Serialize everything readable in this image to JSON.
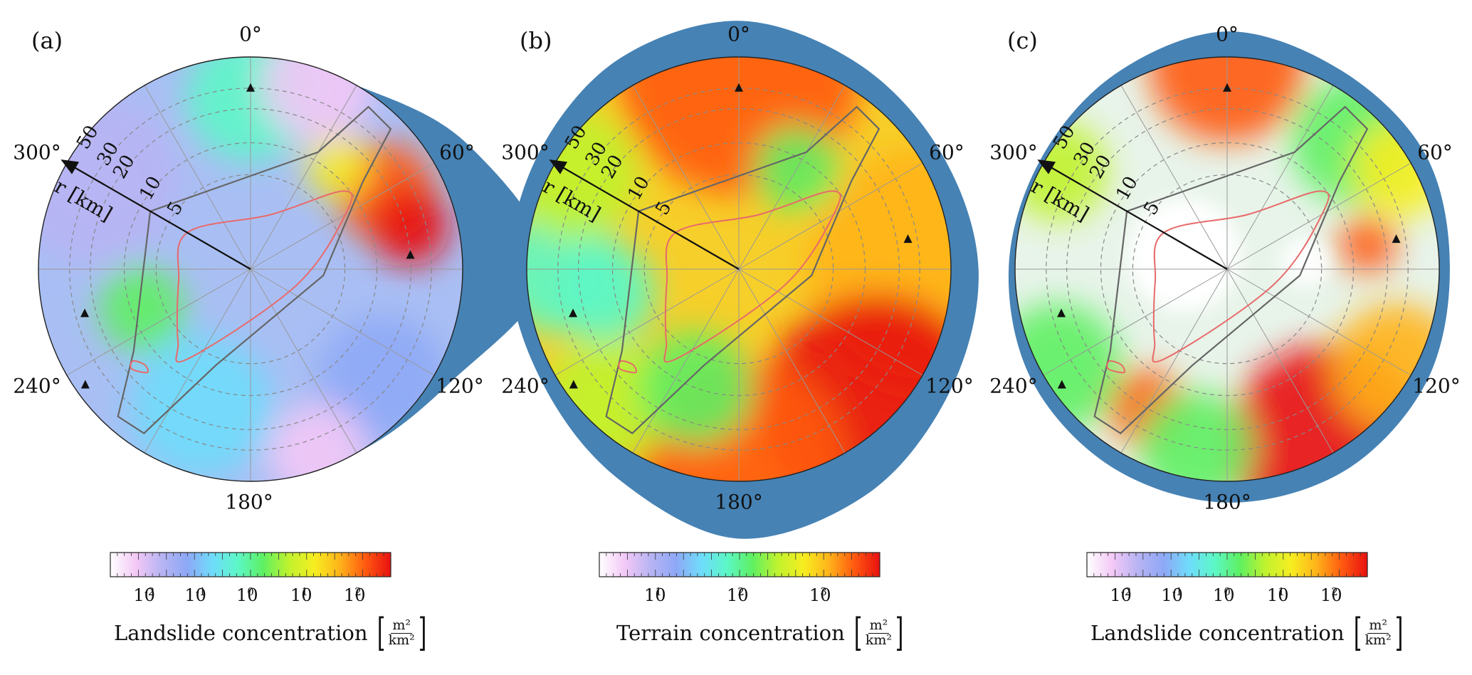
{
  "panels": [
    {
      "label": "(a)",
      "angle_labels": {
        "a0": "0°",
        "a60": "60°",
        "a120": "120°",
        "a180": "180°",
        "a240": "240°",
        "a300": "300°"
      },
      "radial_ticks": [
        "5",
        "10",
        "20",
        "30",
        "50"
      ],
      "radius_axis_label": "r [km]",
      "colorbar_ticks": [
        "10",
        "10",
        "10",
        "10",
        "10"
      ],
      "colorbar_exponents": [
        "-2",
        "-1",
        "0",
        "1",
        "2"
      ],
      "colorbar_label": "Landslide concentration",
      "unit_num": "m²",
      "unit_den": "km²"
    },
    {
      "label": "(b)",
      "angle_labels": {
        "a0": "0°",
        "a60": "60°",
        "a120": "120°",
        "a180": "180°",
        "a240": "240°",
        "a300": "300°"
      },
      "radial_ticks": [
        "5",
        "10",
        "20",
        "30",
        "50"
      ],
      "radius_axis_label": "r [km]",
      "colorbar_ticks": [
        "10",
        "10",
        "10"
      ],
      "colorbar_exponents": [
        "1",
        "2",
        "3"
      ],
      "colorbar_label": "Terrain concentration",
      "unit_num": "m²",
      "unit_den": "km²"
    },
    {
      "label": "(c)",
      "angle_labels": {
        "a0": "0°",
        "a60": "60°",
        "a120": "120°",
        "a180": "180°",
        "a240": "240°",
        "a300": "300°"
      },
      "radial_ticks": [
        "5",
        "10",
        "20",
        "30",
        "50"
      ],
      "radius_axis_label": "r [km]",
      "colorbar_ticks": [
        "10",
        "10",
        "10",
        "10",
        "10"
      ],
      "colorbar_exponents": [
        "-2",
        "-1",
        "0",
        "1",
        "2"
      ],
      "colorbar_label": "Landslide concentration",
      "unit_num": "m²",
      "unit_den": "km²"
    }
  ],
  "colors": {
    "blob": "#4682b4",
    "colormap": [
      "#ffffff",
      "#f3c8f6",
      "#b8b4f3",
      "#8ea8f6",
      "#6fdcfb",
      "#5cf7c7",
      "#5ef062",
      "#c0f22e",
      "#f6ee21",
      "#ffb31a",
      "#ff5a10",
      "#e81010"
    ],
    "fault_outline": "#666666",
    "rupture_outline": "#e86a6a"
  }
}
